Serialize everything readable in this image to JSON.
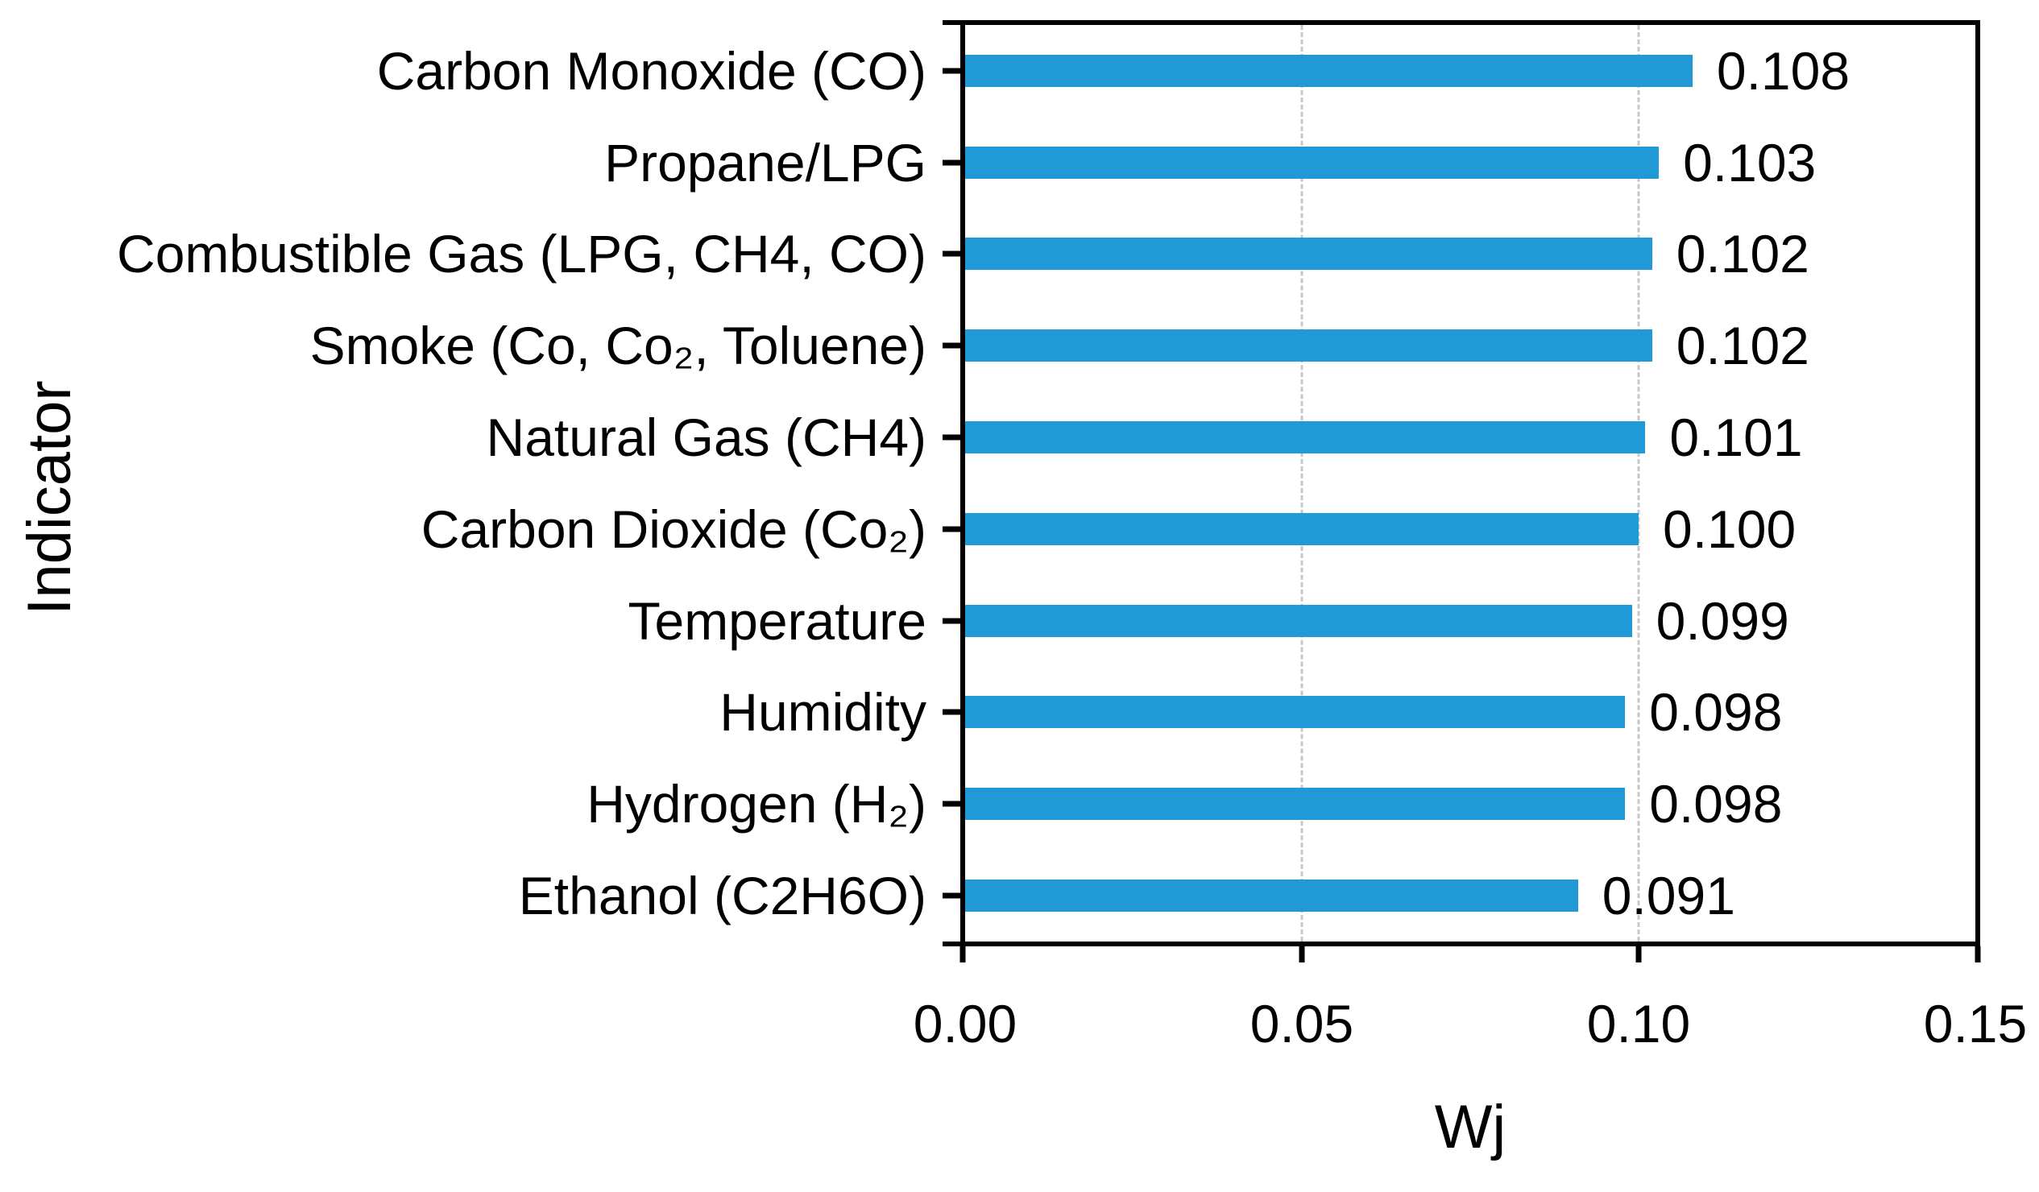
{
  "chart_data": {
    "type": "bar",
    "orientation": "horizontal",
    "title": "",
    "xlabel": "Wj",
    "ylabel": "Indicator",
    "categories": [
      "Carbon Monoxide (CO)",
      "Propane/LPG",
      "Combustible Gas (LPG, CH4, CO)",
      "Smoke (Co, Co₂, Toluene)",
      "Natural Gas (CH4)",
      "Carbon Dioxide (Co₂)",
      "Temperature",
      "Humidity",
      "Hydrogen (H₂)",
      "Ethanol (C2H6O)"
    ],
    "values": [
      0.108,
      0.103,
      0.102,
      0.102,
      0.101,
      0.1,
      0.099,
      0.098,
      0.098,
      0.091
    ],
    "value_labels": [
      "0.108",
      "0.103",
      "0.102",
      "0.102",
      "0.101",
      "0.100",
      "0.099",
      "0.098",
      "0.098",
      "0.091"
    ],
    "xlim": [
      0,
      0.15
    ],
    "x_ticks": [
      {
        "value": 0.0,
        "label": "0.00"
      },
      {
        "value": 0.05,
        "label": "0.05"
      },
      {
        "value": 0.1,
        "label": "0.10"
      },
      {
        "value": 0.15,
        "label": "0.15"
      }
    ],
    "gridlines_at": [
      0.05,
      0.1
    ],
    "legend": "none",
    "grid_style": "dashed-vertical",
    "colors": {
      "bar": "#2199d6",
      "gridline": "#c8c8c8",
      "axis": "#000000",
      "text": "#000000",
      "background": "#ffffff"
    }
  }
}
